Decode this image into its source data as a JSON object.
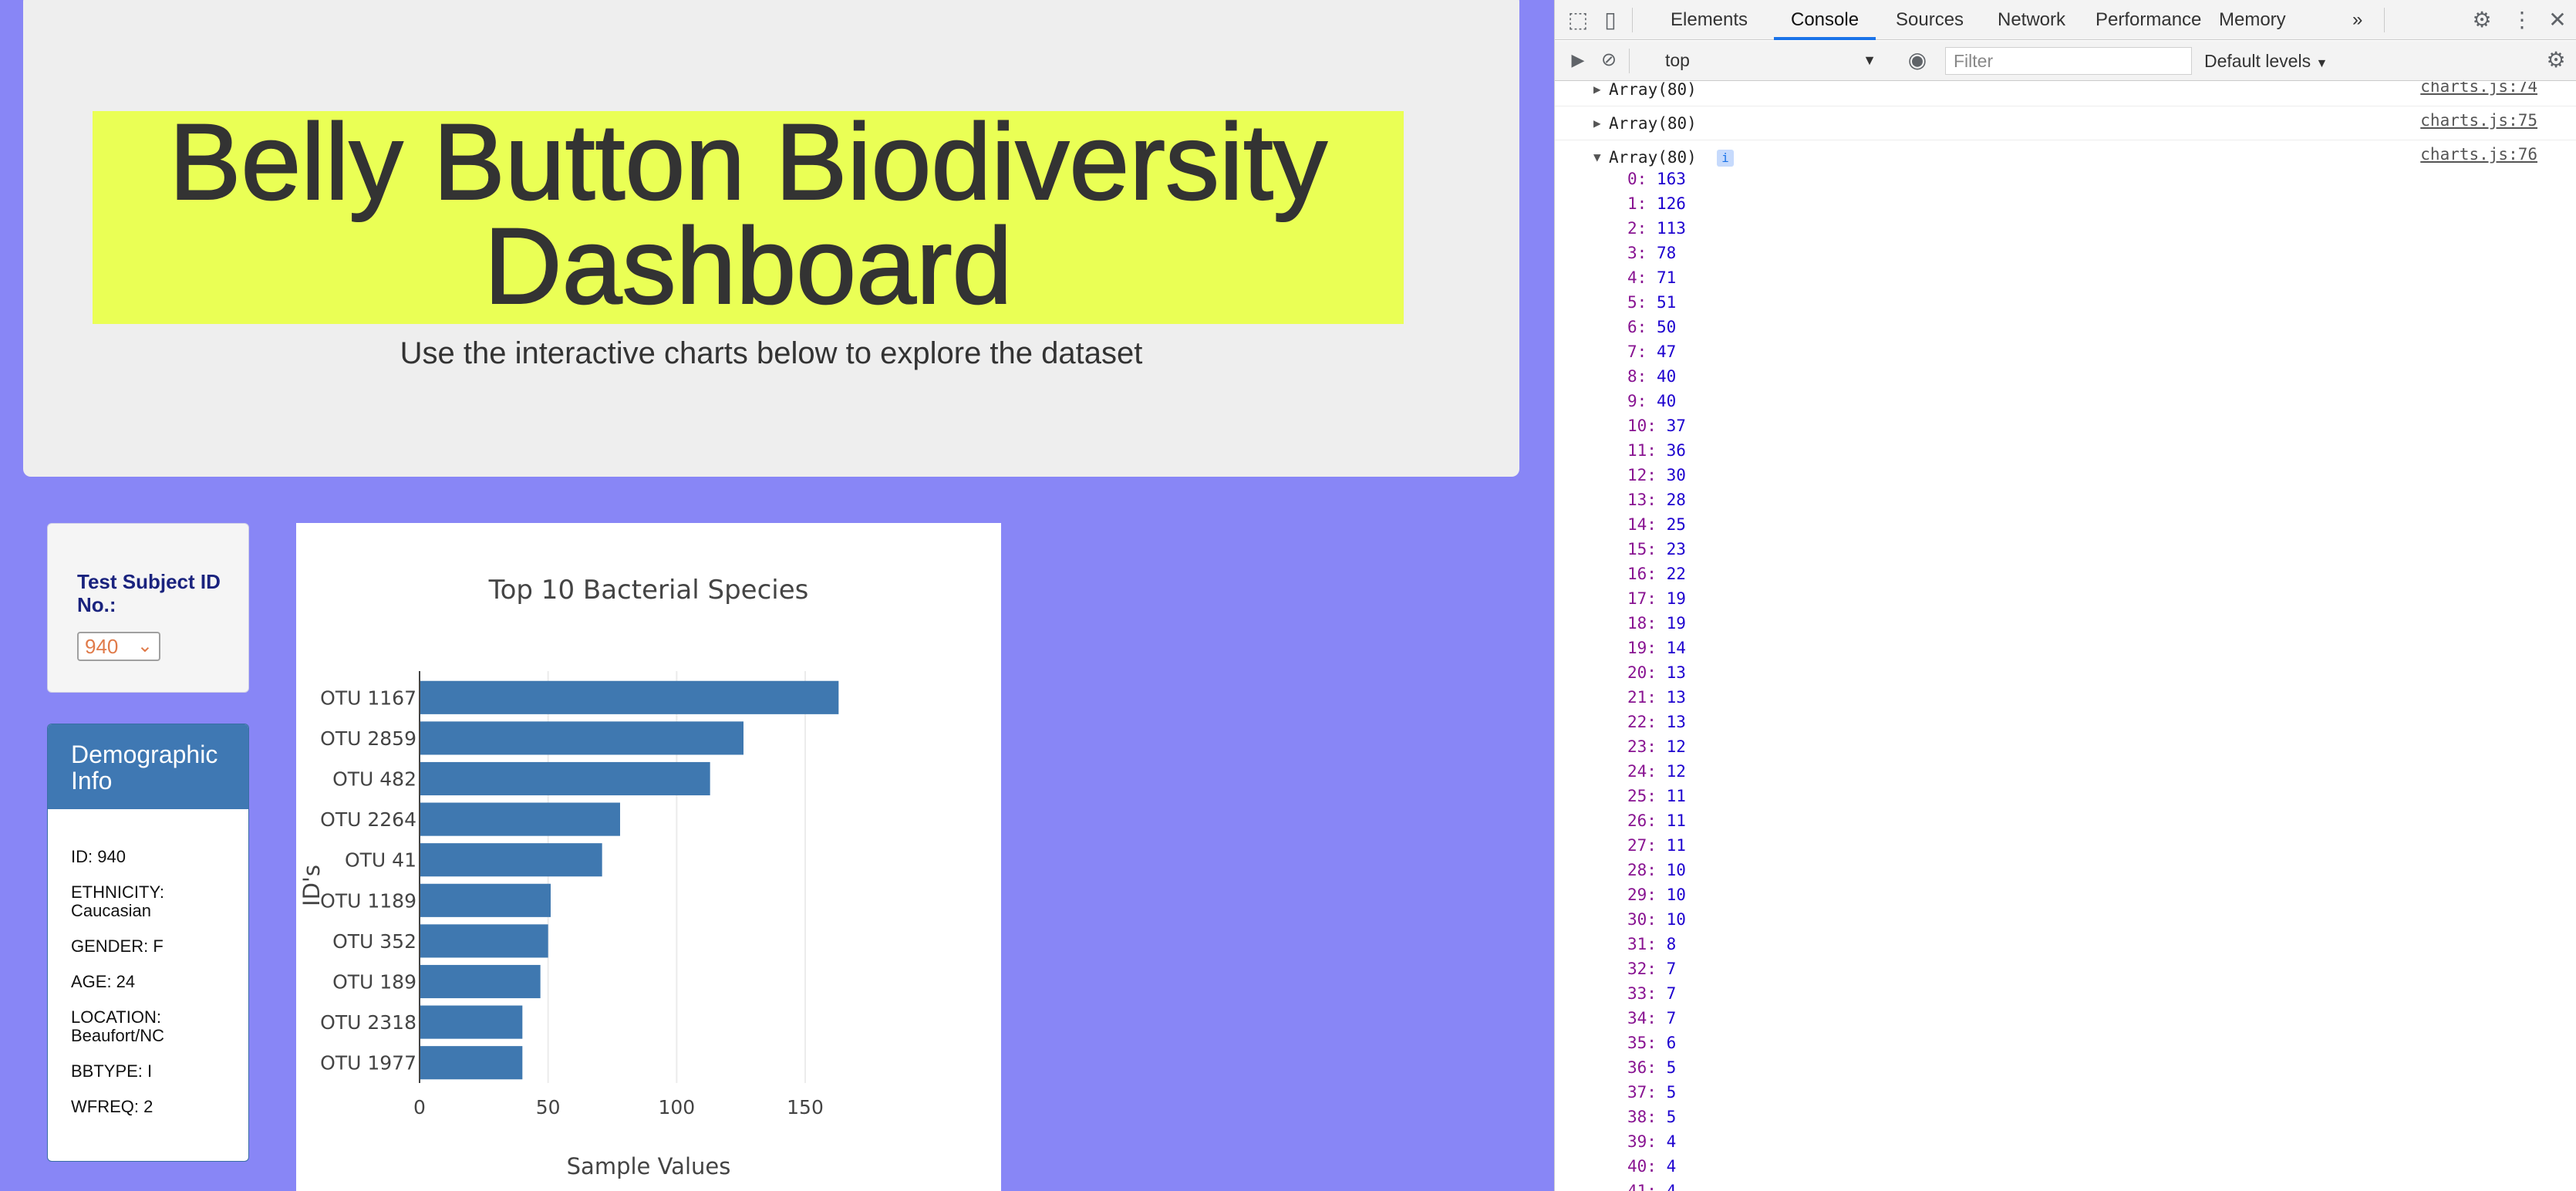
{
  "page": {
    "title": "Belly Button Biodiversity Dashboard",
    "subtitle": "Use the interactive charts below to explore the dataset",
    "highlight_color": "#eaff55",
    "background_color": "#8886f6"
  },
  "select": {
    "label": "Test Subject ID No.:",
    "value": "940"
  },
  "demographics": {
    "title": "Demographic Info",
    "rows": [
      "ID: 940",
      "ETHNICITY: Caucasian",
      "GENDER: F",
      "AGE: 24",
      "LOCATION: Beaufort/NC",
      "BBTYPE: I",
      "WFREQ: 2"
    ]
  },
  "chart_data": {
    "type": "bar",
    "orientation": "horizontal",
    "title": "Top 10 Bacterial Species",
    "xlabel": "Sample Values",
    "ylabel": "ID's",
    "categories": [
      "OTU 1167",
      "OTU 2859",
      "OTU 482",
      "OTU 2264",
      "OTU 41",
      "OTU 1189",
      "OTU 352",
      "OTU 189",
      "OTU 2318",
      "OTU 1977"
    ],
    "values": [
      163,
      126,
      113,
      78,
      71,
      51,
      50,
      47,
      40,
      40
    ],
    "xticks": [
      0,
      50,
      100,
      150
    ],
    "xlim": [
      0,
      171
    ],
    "bar_color": "#3f78b0",
    "grid": true
  },
  "devtools": {
    "tabs": [
      "Elements",
      "Console",
      "Sources",
      "Network",
      "Performance",
      "Memory"
    ],
    "active_tab": "Console",
    "more_icon": "»",
    "context": "top",
    "filter_placeholder": "Filter",
    "levels": "Default levels",
    "logs": [
      {
        "text": "Array(80)",
        "source": "charts.js:74",
        "expanded": false
      },
      {
        "text": "Array(80)",
        "source": "charts.js:75",
        "expanded": false
      },
      {
        "text": "Array(80)",
        "source": "charts.js:76",
        "expanded": true
      }
    ],
    "array_values": [
      163,
      126,
      113,
      78,
      71,
      51,
      50,
      47,
      40,
      40,
      37,
      36,
      30,
      28,
      25,
      23,
      22,
      19,
      19,
      14,
      13,
      13,
      13,
      12,
      12,
      11,
      11,
      11,
      10,
      10,
      10,
      8,
      7,
      7,
      7,
      6,
      5,
      5,
      5,
      4,
      4,
      4
    ]
  }
}
